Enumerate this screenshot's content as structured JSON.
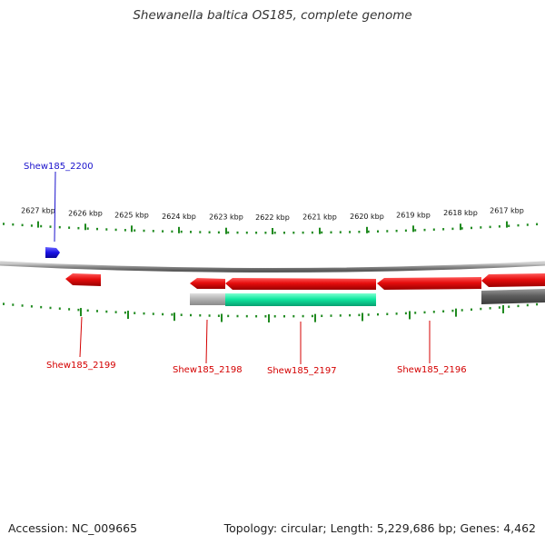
{
  "title": "Shewanella baltica OS185, complete genome",
  "footer": {
    "accession": "Accession: NC_009665",
    "summary": "Topology: circular; Length: 5,229,686 bp; Genes: 4,462"
  },
  "colors": {
    "forward_gene": "#1a12e6",
    "reverse_gene": "#e60d0d",
    "cds": "#10e8a0",
    "pseudo": "#a8a8a8",
    "other": "#555555",
    "backbone": "#8c8c8c",
    "ticks": "#1f8a1f",
    "forward_label": "#1a12cc",
    "reverse_label": "#d40000"
  },
  "ticks": [
    "2627 kbp",
    "2626 kbp",
    "2625 kbp",
    "2624 kbp",
    "2623 kbp",
    "2622 kbp",
    "2621 kbp",
    "2620 kbp",
    "2619 kbp",
    "2618 kbp",
    "2617 kbp"
  ],
  "genes": [
    {
      "label": "Shew185_2200",
      "strand": "forward"
    },
    {
      "label": "Shew185_2199",
      "strand": "reverse"
    },
    {
      "label": "Shew185_2198",
      "strand": "reverse"
    },
    {
      "label": "Shew185_2197",
      "strand": "reverse"
    },
    {
      "label": "Shew185_2196",
      "strand": "reverse"
    }
  ]
}
